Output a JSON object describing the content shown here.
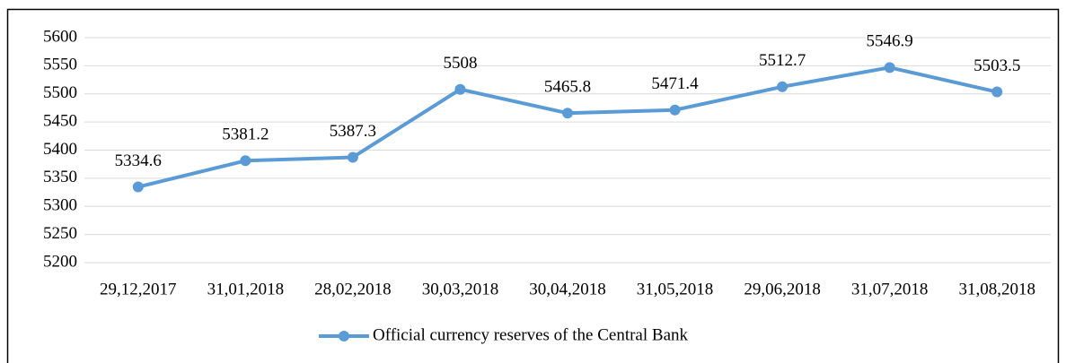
{
  "chart_data": {
    "type": "line",
    "categories": [
      "29,12,2017",
      "31,01,2018",
      "28,02,2018",
      "30,03,2018",
      "30,04,2018",
      "31,05,2018",
      "29,06,2018",
      "31,07,2018",
      "31,08,2018"
    ],
    "series": [
      {
        "name": "Official currency reserves of the Central Bank",
        "color": "#5b9bd5",
        "values": [
          5334.6,
          5381.2,
          5387.3,
          5508,
          5465.8,
          5471.4,
          5512.7,
          5546.9,
          5503.5
        ]
      }
    ],
    "ylim": [
      5200,
      5600
    ],
    "yticks": [
      5200,
      5250,
      5300,
      5350,
      5400,
      5450,
      5500,
      5550,
      5600
    ],
    "grid": true,
    "legend": "bottom"
  }
}
